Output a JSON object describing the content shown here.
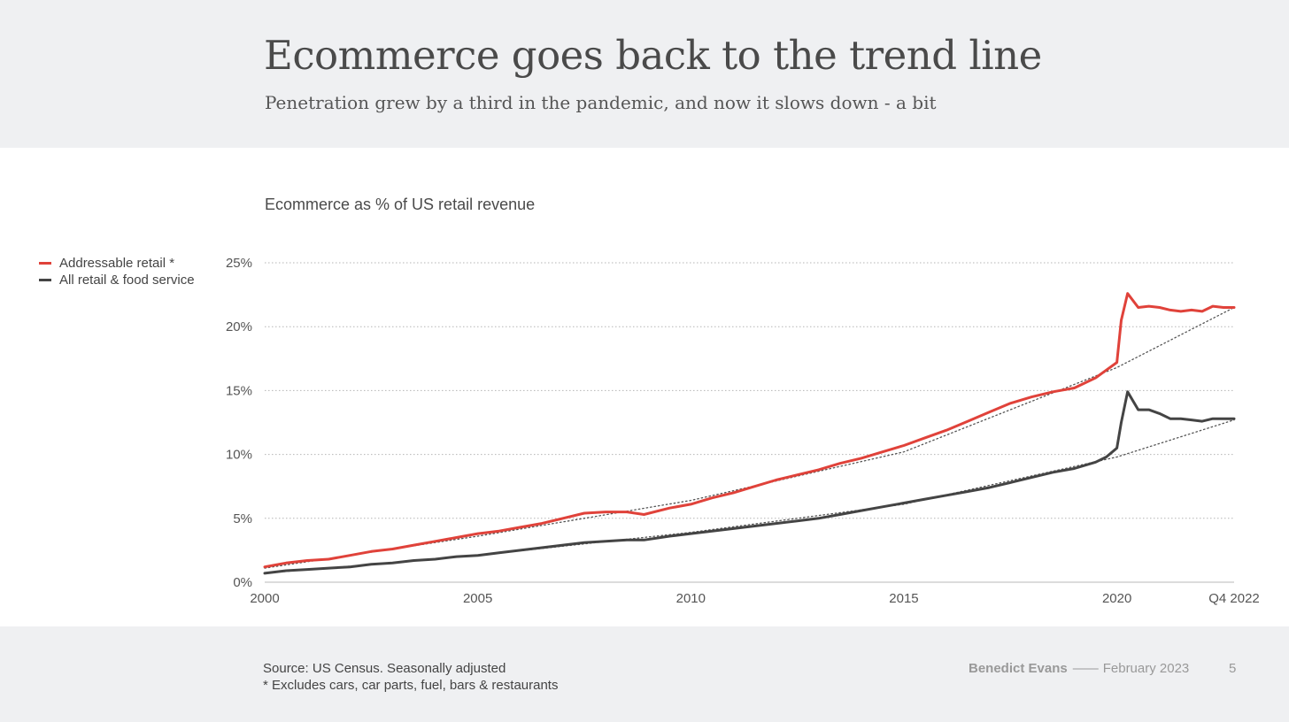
{
  "slide": {
    "title": "Ecommerce goes back to the trend line",
    "subtitle": "Penetration grew by a third in the pandemic, and now it slows down - a bit"
  },
  "legend": {
    "items": [
      {
        "label": "Addressable retail *",
        "color": "#e0423a"
      },
      {
        "label": "All retail & food service",
        "color": "#444444"
      }
    ]
  },
  "footer": {
    "source": "Source: US Census. Seasonally adjusted",
    "note": "* Excludes cars, car parts, fuel, bars & restaurants",
    "author": "Benedict Evans",
    "separator": "——",
    "date": "February 2023",
    "page": "5"
  },
  "chart_data": {
    "type": "line",
    "title": "Ecommerce as % of US retail revenue",
    "xlabel": "",
    "ylabel": "",
    "xlim": [
      2000,
      2022.75
    ],
    "ylim": [
      0,
      25
    ],
    "y_ticks": [
      0,
      5,
      10,
      15,
      20,
      25
    ],
    "y_tick_labels": [
      "0%",
      "5%",
      "10%",
      "15%",
      "20%",
      "25%"
    ],
    "x_ticks": [
      2000,
      2005,
      2010,
      2015,
      2020,
      2022.75
    ],
    "x_tick_labels": [
      "2000",
      "2005",
      "2010",
      "2015",
      "2020",
      "Q4 2022"
    ],
    "grid": "horizontal dotted",
    "legend_position": "top-left",
    "series": [
      {
        "name": "Addressable retail *",
        "color": "#e0423a",
        "x": [
          2000,
          2000.5,
          2001,
          2001.5,
          2002,
          2002.5,
          2003,
          2003.5,
          2004,
          2004.5,
          2005,
          2005.5,
          2006,
          2006.5,
          2007,
          2007.5,
          2008,
          2008.5,
          2008.9,
          2009.5,
          2010,
          2010.5,
          2011,
          2011.5,
          2012,
          2012.5,
          2013,
          2013.5,
          2014,
          2014.5,
          2015,
          2015.5,
          2016,
          2016.5,
          2017,
          2017.5,
          2018,
          2018.5,
          2019,
          2019.5,
          2019.75,
          2020,
          2020.1,
          2020.25,
          2020.5,
          2020.75,
          2021,
          2021.25,
          2021.5,
          2021.75,
          2022,
          2022.25,
          2022.5,
          2022.75
        ],
        "values": [
          1.2,
          1.5,
          1.7,
          1.8,
          2.1,
          2.4,
          2.6,
          2.9,
          3.2,
          3.5,
          3.8,
          4.0,
          4.3,
          4.6,
          5.0,
          5.4,
          5.5,
          5.5,
          5.3,
          5.8,
          6.1,
          6.6,
          7.0,
          7.5,
          8.0,
          8.4,
          8.8,
          9.3,
          9.7,
          10.2,
          10.7,
          11.3,
          11.9,
          12.6,
          13.3,
          14.0,
          14.5,
          14.9,
          15.2,
          16.0,
          16.6,
          17.2,
          20.5,
          22.6,
          21.5,
          21.6,
          21.5,
          21.3,
          21.2,
          21.3,
          21.2,
          21.6,
          21.5,
          21.5
        ]
      },
      {
        "name": "All retail & food service",
        "color": "#444444",
        "x": [
          2000,
          2000.5,
          2001,
          2001.5,
          2002,
          2002.5,
          2003,
          2003.5,
          2004,
          2004.5,
          2005,
          2005.5,
          2006,
          2006.5,
          2007,
          2007.5,
          2008,
          2008.5,
          2008.9,
          2009.5,
          2010,
          2010.5,
          2011,
          2011.5,
          2012,
          2012.5,
          2013,
          2013.5,
          2014,
          2014.5,
          2015,
          2015.5,
          2016,
          2016.5,
          2017,
          2017.5,
          2018,
          2018.5,
          2019,
          2019.5,
          2019.75,
          2020,
          2020.1,
          2020.25,
          2020.5,
          2020.75,
          2021,
          2021.25,
          2021.5,
          2021.75,
          2022,
          2022.25,
          2022.5,
          2022.75
        ],
        "values": [
          0.7,
          0.9,
          1.0,
          1.1,
          1.2,
          1.4,
          1.5,
          1.7,
          1.8,
          2.0,
          2.1,
          2.3,
          2.5,
          2.7,
          2.9,
          3.1,
          3.2,
          3.3,
          3.3,
          3.6,
          3.8,
          4.0,
          4.2,
          4.4,
          4.6,
          4.8,
          5.0,
          5.3,
          5.6,
          5.9,
          6.2,
          6.5,
          6.8,
          7.1,
          7.4,
          7.8,
          8.2,
          8.6,
          8.9,
          9.4,
          9.8,
          10.5,
          12.5,
          14.9,
          13.5,
          13.5,
          13.2,
          12.8,
          12.8,
          12.7,
          12.6,
          12.8,
          12.8,
          12.8
        ]
      },
      {
        "name": "Addressable retail trend",
        "style": "dotted",
        "color": "#555555",
        "x": [
          2000,
          2005,
          2010,
          2015,
          2020,
          2022.75
        ],
        "values": [
          1.1,
          3.6,
          6.4,
          10.2,
          16.8,
          21.5
        ]
      },
      {
        "name": "All retail & food service trend",
        "style": "dotted",
        "color": "#555555",
        "x": [
          2000,
          2005,
          2010,
          2015,
          2020,
          2022.75
        ],
        "values": [
          0.7,
          2.1,
          3.9,
          6.1,
          9.8,
          12.7
        ]
      }
    ]
  }
}
